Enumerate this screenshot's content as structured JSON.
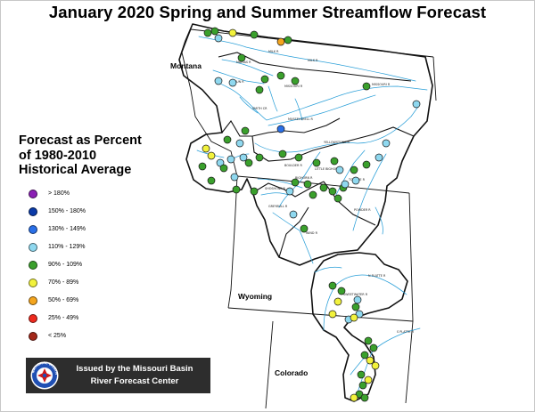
{
  "title": "January 2020 Spring and Summer Streamflow Forecast",
  "legend": {
    "title_lines": [
      "Forecast as Percent",
      "of 1980-2010",
      "Historical Average"
    ],
    "items": [
      {
        "label": "> 180%",
        "color": "#8b1fb5"
      },
      {
        "label": "150% - 180%",
        "color": "#0a3aa8"
      },
      {
        "label": "130% - 149%",
        "color": "#2a70e8"
      },
      {
        "label": "110% - 129%",
        "color": "#8fd8ef"
      },
      {
        "label": "90% - 109%",
        "color": "#3aa02c"
      },
      {
        "label": "70% - 89%",
        "color": "#f2f23c"
      },
      {
        "label": "50% - 69%",
        "color": "#f4a51e"
      },
      {
        "label": "25% - 49%",
        "color": "#ee2a1e"
      },
      {
        "label": "< 25%",
        "color": "#a3281a"
      }
    ]
  },
  "states": {
    "montana": "Montana",
    "wyoming": "Wyoming",
    "colorado": "Colorado"
  },
  "rivers": [
    "MILK R",
    "MILK R",
    "MISSOURI R",
    "SUN R",
    "MISSOURI R",
    "MARIAS R",
    "SMITH CR",
    "MUSSELSHELL R",
    "YELLOWSTONE R",
    "BIGHORN R",
    "TONGUE R",
    "POWDER R",
    "WIND R",
    "SHOSHONE R",
    "GREYBULL R",
    "N PLATTE R",
    "S PLATTE R",
    "SWEETWATER R",
    "LITTLE BIGHORN R",
    "BOULDER R"
  ],
  "credit": {
    "line1": "Issued by the Missouri Basin",
    "line2": "River Forecast Center"
  },
  "logo_text": "NATIONAL WEATHER SERVICE"
}
